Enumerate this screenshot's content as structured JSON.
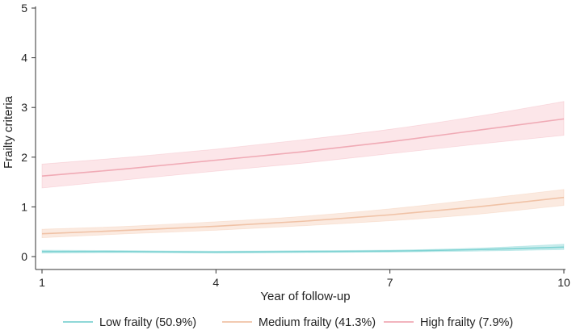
{
  "chart_data": {
    "type": "line",
    "title": "",
    "xlabel": "Year of follow-up",
    "ylabel": "Frailty criteria",
    "xlim": [
      1,
      10
    ],
    "ylim": [
      0,
      5
    ],
    "x_ticks": [
      1,
      4,
      7,
      10
    ],
    "y_ticks": [
      0,
      1,
      2,
      3,
      4,
      5
    ],
    "grid": false,
    "legend_position": "bottom",
    "series": [
      {
        "name": "Low frailty (50.9%)",
        "color": "#7fd3d3",
        "band_color": "#b5e6e6",
        "x": [
          1,
          2.5,
          4,
          5.5,
          7,
          8.5,
          10
        ],
        "y": [
          0.1,
          0.1,
          0.09,
          0.1,
          0.11,
          0.14,
          0.19
        ],
        "ci_low": [
          0.07,
          0.08,
          0.07,
          0.08,
          0.09,
          0.11,
          0.14
        ],
        "ci_high": [
          0.13,
          0.12,
          0.11,
          0.12,
          0.13,
          0.17,
          0.25
        ]
      },
      {
        "name": "Medium frailty (41.3%)",
        "color": "#f0c2a6",
        "band_color": "#fae3d6",
        "x": [
          1,
          2.5,
          4,
          5.5,
          7,
          8.5,
          10
        ],
        "y": [
          0.46,
          0.53,
          0.61,
          0.71,
          0.84,
          1.0,
          1.19
        ],
        "ci_low": [
          0.38,
          0.46,
          0.53,
          0.62,
          0.72,
          0.85,
          1.03
        ],
        "ci_high": [
          0.55,
          0.61,
          0.7,
          0.81,
          0.96,
          1.15,
          1.35
        ]
      },
      {
        "name": "High frailty (7.9%)",
        "color": "#f0aab5",
        "band_color": "#fbdde1",
        "x": [
          1,
          2.5,
          4,
          5.5,
          7,
          8.5,
          10
        ],
        "y": [
          1.62,
          1.77,
          1.94,
          2.11,
          2.31,
          2.54,
          2.77
        ],
        "ci_low": [
          1.38,
          1.55,
          1.72,
          1.88,
          2.07,
          2.26,
          2.44
        ],
        "ci_high": [
          1.86,
          2.0,
          2.16,
          2.35,
          2.56,
          2.82,
          3.12
        ]
      }
    ]
  }
}
